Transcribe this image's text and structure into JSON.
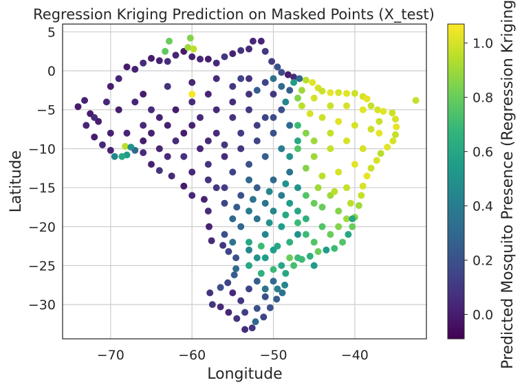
{
  "chart_data": {
    "type": "scatter",
    "title": "Regression Kriging Prediction on Masked Points (X_test)",
    "xlabel": "Longitude",
    "ylabel": "Latitude",
    "xlim": [
      -75.9,
      -31.2
    ],
    "ylim": [
      -34.4,
      6.0
    ],
    "xticks": [
      -70,
      -60,
      -50,
      -40
    ],
    "xtick_labels": [
      "−70",
      "−60",
      "−50",
      "−40"
    ],
    "yticks": [
      5,
      0,
      -5,
      -10,
      -15,
      -20,
      -25,
      -30
    ],
    "ytick_labels": [
      "5",
      "0",
      "−5",
      "−10",
      "−15",
      "−20",
      "−25",
      "−30"
    ],
    "grid": true,
    "colormap": "viridis",
    "colorbar": {
      "label": "Predicted Mosquito Presence (Regression Kriging)",
      "range": [
        -0.09,
        1.07
      ],
      "ticks": [
        0.0,
        0.2,
        0.4,
        0.6,
        0.8,
        1.0
      ],
      "tick_labels": [
        "0.0",
        "0.2",
        "0.4",
        "0.6",
        "0.8",
        "1.0"
      ]
    },
    "points": [
      [
        -74,
        -4.6,
        0.0
      ],
      [
        -73.2,
        -3.8,
        0.02
      ],
      [
        -72.5,
        -5.5,
        0.0
      ],
      [
        -73,
        -7,
        0.03
      ],
      [
        -72,
        -8.5,
        0.0
      ],
      [
        -71,
        -9.5,
        0.05
      ],
      [
        -70,
        -10.2,
        0.02
      ],
      [
        -71.5,
        -6.5,
        0.0
      ],
      [
        -70.5,
        -4,
        0.04
      ],
      [
        -70,
        -2,
        0.0
      ],
      [
        -69,
        -1,
        0.03
      ],
      [
        -68,
        0.5,
        0.0
      ],
      [
        -67,
        0.2,
        0.02
      ],
      [
        -66,
        1,
        0.05
      ],
      [
        -65,
        1.6,
        0.0
      ],
      [
        -64,
        1.3,
        0.02
      ],
      [
        -63,
        1.2,
        0.06
      ],
      [
        -62,
        2,
        0.03
      ],
      [
        -61,
        2.5,
        0.0
      ],
      [
        -60,
        1.8,
        0.02
      ],
      [
        -59,
        1.5,
        0.04
      ],
      [
        -58,
        1.5,
        0.0
      ],
      [
        -57,
        1,
        0.05
      ],
      [
        -56,
        1.8,
        0.1
      ],
      [
        -55,
        2.2,
        0.02
      ],
      [
        -54,
        2.6,
        0.08
      ],
      [
        -53,
        2.8,
        0.05
      ],
      [
        -52.5,
        3.8,
        0.04
      ],
      [
        -51.5,
        3.8,
        0.03
      ],
      [
        -51,
        2.5,
        0.1
      ],
      [
        -50.2,
        1.2,
        0.12
      ],
      [
        -49.5,
        0.5,
        0.2
      ],
      [
        -49,
        -0.2,
        0.18
      ],
      [
        -48.2,
        -0.5,
        0.0
      ],
      [
        -47.5,
        -0.8,
        0.05
      ],
      [
        -46.8,
        -1,
        0.3
      ],
      [
        -46,
        -1.2,
        0.95
      ],
      [
        -45.2,
        -1.5,
        1.02
      ],
      [
        -44.5,
        -2.2,
        1.0
      ],
      [
        -44,
        -2.6,
        0.98
      ],
      [
        -43,
        -2.8,
        1.03
      ],
      [
        -42,
        -2.8,
        1.0
      ],
      [
        -41,
        -2.9,
        1.02
      ],
      [
        -40,
        -2.9,
        0.98
      ],
      [
        -39,
        -3.3,
        1.0
      ],
      [
        -38.5,
        -3.6,
        1.03
      ],
      [
        -38,
        -4.5,
        0.97
      ],
      [
        -37.2,
        -5,
        1.0
      ],
      [
        -36.5,
        -5.2,
        1.02
      ],
      [
        -35.4,
        -5.4,
        0.98
      ],
      [
        -35,
        -6.2,
        1.0
      ],
      [
        -34.9,
        -7.2,
        1.03
      ],
      [
        -35,
        -8.2,
        0.97
      ],
      [
        -35.3,
        -9,
        1.0
      ],
      [
        -36,
        -9.8,
        1.02
      ],
      [
        -36.8,
        -10.6,
        0.95
      ],
      [
        -37.3,
        -11.5,
        1.0
      ],
      [
        -38,
        -12.5,
        0.98
      ],
      [
        -38.5,
        -13.5,
        1.03
      ],
      [
        -39,
        -14.8,
        1.0
      ],
      [
        -39.2,
        -16,
        0.97
      ],
      [
        -39.5,
        -17.3,
        0.9
      ],
      [
        -40,
        -18.8,
        0.85
      ],
      [
        -40.3,
        -20,
        0.8
      ],
      [
        -40.8,
        -21,
        0.6
      ],
      [
        -41.5,
        -22,
        0.75
      ],
      [
        -42.5,
        -22.8,
        0.7
      ],
      [
        -43.5,
        -23,
        0.55
      ],
      [
        -44.5,
        -23.2,
        0.8
      ],
      [
        -45.5,
        -23.8,
        0.65
      ],
      [
        -46.5,
        -24.2,
        0.7
      ],
      [
        -47.5,
        -25,
        0.72
      ],
      [
        -48.5,
        -26,
        0.6
      ],
      [
        -48.6,
        -27.5,
        0.45
      ],
      [
        -48.9,
        -28.5,
        0.35
      ],
      [
        -49.6,
        -29.3,
        0.25
      ],
      [
        -50.4,
        -30.4,
        0.2
      ],
      [
        -51.2,
        -31.6,
        0.15
      ],
      [
        -52.2,
        -32.2,
        0.3
      ],
      [
        -52.6,
        -33,
        0.1
      ],
      [
        -53.5,
        -33.2,
        0.05
      ],
      [
        -54.5,
        -31.8,
        0.08
      ],
      [
        -55.5,
        -31,
        0.03
      ],
      [
        -56.5,
        -30.3,
        0.05
      ],
      [
        -57.5,
        -30,
        0.1
      ],
      [
        -57.8,
        -28.5,
        0.08
      ],
      [
        -56.5,
        -27.8,
        0.2
      ],
      [
        -55.6,
        -27.2,
        0.15
      ],
      [
        -54.8,
        -26.2,
        0.25
      ],
      [
        -54.6,
        -25.4,
        0.3
      ],
      [
        -54.6,
        -24,
        0.2
      ],
      [
        -55.5,
        -23.2,
        0.15
      ],
      [
        -56.2,
        -22.4,
        0.1
      ],
      [
        -57.6,
        -21.8,
        0.05
      ],
      [
        -57.9,
        -20,
        0.02
      ],
      [
        -58,
        -18,
        0.05
      ],
      [
        -58.5,
        -16.5,
        0.02
      ],
      [
        -60,
        -16,
        0.04
      ],
      [
        -61,
        -14.8,
        0.0
      ],
      [
        -62.5,
        -13.5,
        0.05
      ],
      [
        -64,
        -12.8,
        0.08
      ],
      [
        -65,
        -12,
        0.02
      ],
      [
        -66,
        -10.5,
        0.05
      ],
      [
        -67,
        -10.2,
        0.3
      ],
      [
        -68,
        -10.8,
        0.55
      ],
      [
        -68.6,
        -11,
        0.6
      ],
      [
        -69.5,
        -11,
        0.45
      ],
      [
        -68.2,
        -9.7,
        0.95
      ],
      [
        -67.5,
        -9.8,
        0.5
      ],
      [
        -68,
        -8,
        0.03
      ],
      [
        -66,
        -7,
        0.05
      ],
      [
        -64,
        -6,
        0.02
      ],
      [
        -62,
        -5,
        0.0
      ],
      [
        -60,
        -4,
        0.05
      ],
      [
        -58,
        -3,
        0.03
      ],
      [
        -66,
        -3,
        0.0
      ],
      [
        -63,
        -2,
        0.08
      ],
      [
        -60,
        -1.5,
        0.03
      ],
      [
        -57,
        -1,
        0.05
      ],
      [
        -55,
        -2,
        0.1
      ],
      [
        -53,
        -1,
        0.08
      ],
      [
        -51,
        -1.5,
        0.15
      ],
      [
        -50,
        -3,
        0.1
      ],
      [
        -49,
        -2,
        0.3
      ],
      [
        -48,
        -2.5,
        0.25
      ],
      [
        -47,
        -3.5,
        0.85
      ],
      [
        -46.5,
        -4.5,
        0.95
      ],
      [
        -45.5,
        -5.5,
        1.0
      ],
      [
        -44,
        -6,
        0.98
      ],
      [
        -42,
        -6.5,
        1.02
      ],
      [
        -40,
        -7,
        1.0
      ],
      [
        -38,
        -7.5,
        0.98
      ],
      [
        -37,
        -8,
        1.03
      ],
      [
        -41,
        -9,
        1.0
      ],
      [
        -43,
        -10,
        0.97
      ],
      [
        -45,
        -11,
        0.9
      ],
      [
        -46,
        -12.5,
        0.85
      ],
      [
        -44,
        -13.5,
        0.95
      ],
      [
        -42,
        -13,
        1.0
      ],
      [
        -40,
        -12,
        1.02
      ],
      [
        -41,
        -15,
        0.97
      ],
      [
        -43,
        -16,
        0.9
      ],
      [
        -45,
        -17,
        0.8
      ],
      [
        -47,
        -18,
        0.6
      ],
      [
        -42,
        -18,
        0.85
      ],
      [
        -44,
        -20,
        0.75
      ],
      [
        -46,
        -21,
        0.7
      ],
      [
        -48,
        -22,
        0.65
      ],
      [
        -50,
        -23,
        0.55
      ],
      [
        -52,
        -24,
        0.5
      ],
      [
        -53,
        -22,
        0.6
      ],
      [
        -51,
        -21,
        0.45
      ],
      [
        -49,
        -20,
        0.55
      ],
      [
        -47,
        -19.5,
        0.7
      ],
      [
        -55,
        -19,
        0.3
      ],
      [
        -53,
        -18,
        0.4
      ],
      [
        -51,
        -17,
        0.35
      ],
      [
        -49,
        -16,
        0.4
      ],
      [
        -47,
        -15,
        0.5
      ],
      [
        -48,
        -13,
        0.35
      ],
      [
        -50,
        -14,
        0.3
      ],
      [
        -52,
        -15,
        0.25
      ],
      [
        -54,
        -16,
        0.2
      ],
      [
        -56,
        -17,
        0.15
      ],
      [
        -57,
        -15,
        0.1
      ],
      [
        -55,
        -13,
        0.15
      ],
      [
        -53,
        -12,
        0.2
      ],
      [
        -51,
        -11,
        0.25
      ],
      [
        -49,
        -10,
        0.4
      ],
      [
        -47,
        -9,
        0.6
      ],
      [
        -48,
        -7,
        0.3
      ],
      [
        -50,
        -8,
        0.2
      ],
      [
        -52,
        -9,
        0.15
      ],
      [
        -54,
        -10,
        0.1
      ],
      [
        -56,
        -11,
        0.05
      ],
      [
        -58,
        -12,
        0.08
      ],
      [
        -59,
        -10,
        0.03
      ],
      [
        -57,
        -8,
        0.05
      ],
      [
        -55,
        -6,
        0.08
      ],
      [
        -53,
        -5,
        0.1
      ],
      [
        -51,
        -6,
        0.15
      ],
      [
        -49,
        -5,
        0.2
      ],
      [
        -60,
        -7,
        0.02
      ],
      [
        -62,
        -9,
        0.05
      ],
      [
        -64,
        -10,
        0.03
      ],
      [
        -66,
        -9,
        0.0
      ],
      [
        -70,
        -8,
        0.02
      ],
      [
        -72,
        -6,
        0.05
      ],
      [
        -69,
        -5,
        0.0
      ],
      [
        -67,
        -4,
        0.03
      ],
      [
        -65,
        -5,
        0.05
      ],
      [
        -63,
        -7,
        0.02
      ],
      [
        -61,
        -8,
        0.0
      ],
      [
        -59,
        -6,
        0.04
      ],
      [
        -57,
        -5,
        0.05
      ],
      [
        -55,
        -4,
        0.06
      ],
      [
        -53,
        -3,
        0.08
      ],
      [
        -52,
        -7,
        0.12
      ],
      [
        -50,
        -6,
        0.18
      ],
      [
        -47,
        -7,
        0.7
      ],
      [
        -46,
        -8,
        0.85
      ],
      [
        -47,
        -10,
        0.75
      ],
      [
        -48,
        -11,
        0.5
      ],
      [
        -45,
        -9,
        0.9
      ],
      [
        -43,
        -8,
        0.97
      ],
      [
        -39,
        -10,
        1.0
      ],
      [
        -39,
        -5,
        1.02
      ],
      [
        -37,
        -6.5,
        0.98
      ],
      [
        -41,
        -4.5,
        1.0
      ],
      [
        -43,
        -4.5,
        0.98
      ],
      [
        -45,
        -3.5,
        1.0
      ],
      [
        -46.5,
        -2.5,
        0.9
      ],
      [
        -44.5,
        -15,
        0.9
      ],
      [
        -46,
        -16,
        0.75
      ],
      [
        -48,
        -17,
        0.55
      ],
      [
        -50,
        -18,
        0.45
      ],
      [
        -52,
        -19,
        0.35
      ],
      [
        -54,
        -20,
        0.3
      ],
      [
        -56,
        -21,
        0.2
      ],
      [
        -55,
        -22,
        0.35
      ],
      [
        -53,
        -23,
        0.45
      ],
      [
        -51,
        -24,
        0.55
      ],
      [
        -49,
        -25,
        0.6
      ],
      [
        -47,
        -24,
        0.7
      ],
      [
        -45,
        -22,
        0.75
      ],
      [
        -43,
        -21,
        0.8
      ],
      [
        -42,
        -20,
        0.85
      ],
      [
        -41,
        -19,
        0.9
      ],
      [
        -40.5,
        -17,
        0.95
      ],
      [
        -50,
        -27,
        0.3
      ],
      [
        -52,
        -27,
        0.25
      ],
      [
        -53,
        -28,
        0.15
      ],
      [
        -51,
        -29,
        0.2
      ],
      [
        -54,
        -29.5,
        0.1
      ],
      [
        -52,
        -30.5,
        0.2
      ],
      [
        -55,
        -28.5,
        0.05
      ],
      [
        -53.5,
        -31,
        0.12
      ],
      [
        -51,
        -28,
        0.35
      ],
      [
        -49.5,
        -28,
        0.4
      ],
      [
        -60,
        -3,
        1.06
      ],
      [
        -60.2,
        4.2,
        0.85
      ],
      [
        -60.5,
        3,
        0.9
      ],
      [
        -59.8,
        2.8,
        0.95
      ],
      [
        -62.8,
        3.8,
        0.8
      ],
      [
        -63.3,
        2.5,
        0.78
      ],
      [
        -32.5,
        -3.8,
        0.97
      ],
      [
        -40.3,
        -19,
        0.6
      ],
      [
        -47.5,
        -1.5,
        0.55
      ],
      [
        -48.5,
        -4,
        0.45
      ],
      [
        -50,
        -1,
        0.35
      ],
      [
        -52,
        -2.5,
        0.25
      ],
      [
        -54,
        -1,
        0.15
      ],
      [
        -47,
        -21,
        0.5
      ],
      [
        -53,
        -25,
        0.6
      ],
      [
        -51.5,
        -26,
        0.65
      ],
      [
        -50,
        -25.5,
        0.7
      ],
      [
        -46,
        -19,
        0.65
      ],
      [
        -44,
        -17.5,
        0.8
      ],
      [
        -42.5,
        -15.5,
        0.95
      ],
      [
        -58,
        -9,
        0.05
      ],
      [
        -61,
        -11,
        0.08
      ],
      [
        -63,
        -11,
        0.05
      ],
      [
        -65,
        -8,
        0.02
      ],
      [
        -56,
        -9.5,
        0.1
      ],
      [
        -54,
        -8,
        0.12
      ],
      [
        -56,
        -15,
        0.12
      ],
      [
        -58,
        -14,
        0.08
      ],
      [
        -60,
        -13,
        0.04
      ],
      [
        -53,
        -14,
        0.3
      ],
      [
        -45,
        -25,
        0.55
      ],
      [
        -48,
        -24,
        0.8
      ],
      [
        -49.5,
        -22.5,
        0.6
      ],
      [
        -51.5,
        -22.5,
        0.7
      ],
      [
        -50.5,
        -19.5,
        0.5
      ],
      [
        -48.5,
        -18.5,
        0.6
      ],
      [
        -52.5,
        -16.5,
        0.35
      ],
      [
        -54.5,
        -17.5,
        0.25
      ],
      [
        -50.5,
        -15.5,
        0.45
      ],
      [
        -48.5,
        -14.5,
        0.5
      ]
    ]
  }
}
